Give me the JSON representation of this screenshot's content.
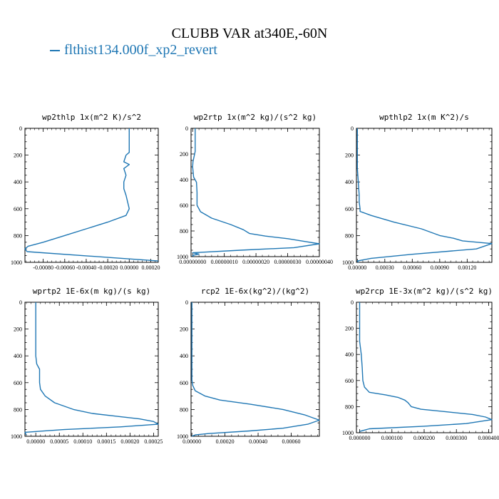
{
  "title": "CLUBB VAR at340E,-60N",
  "legend": {
    "series_name": "flthist134.000f_xp2_revert",
    "color": "#1f77b4"
  },
  "chart_data": [
    {
      "type": "line",
      "title": "wp2thlp   1x(m^2 K)/s^2",
      "ylim": [
        1000,
        0
      ],
      "y_ticks": [
        "0",
        "200",
        "400",
        "600",
        "800",
        "1000"
      ],
      "xlim": [
        -0.00097,
        0.00027
      ],
      "x_ticks": [
        "-0.00080",
        "-0.00060",
        "-0.00040",
        "-0.00020",
        "0.00000",
        "0.00020"
      ],
      "x_tick_values": [
        -0.0008,
        -0.0006,
        -0.0004,
        -0.0002,
        0.0,
        0.0002
      ],
      "series": [
        {
          "x": [
            0.0,
            0.0,
            -3e-05,
            -5e-05,
            0.0,
            -5e-05,
            -3e-05,
            -5e-05,
            -5e-05,
            -3e-05,
            0.0,
            -3e-05,
            -0.0002,
            -0.0004,
            -0.0006,
            -0.0008,
            -0.00094,
            -0.00097,
            -0.00095,
            0.00027
          ],
          "y": [
            0,
            180,
            200,
            250,
            270,
            300,
            350,
            400,
            450,
            500,
            600,
            650,
            700,
            750,
            800,
            850,
            880,
            900,
            920,
            990
          ]
        }
      ]
    },
    {
      "type": "line",
      "title": "wp2rtp   1x(m^2 kg)/(s^2 kg)",
      "ylim": [
        1000,
        0
      ],
      "y_ticks": [
        "0",
        "200",
        "400",
        "600",
        "800",
        "1000"
      ],
      "xlim": [
        -5e-09,
        4e-07
      ],
      "x_ticks": [
        "0.00000000",
        "0.00000010",
        "0.00000020",
        "0.00000030",
        "0.00000040"
      ],
      "x_tick_values": [
        0.0,
        1e-07,
        2e-07,
        3e-07,
        4e-07
      ],
      "series": [
        {
          "x": [
            8e-09,
            8e-09,
            1e-09,
            0.0,
            3e-09,
            1.2e-08,
            1.4e-08,
            1.4e-08,
            2.5e-08,
            6e-08,
            1.2e-07,
            1.6e-07,
            1.8e-07,
            2.3e-07,
            3e-07,
            3.5e-07,
            4e-07,
            3.2e-07,
            1.5e-07,
            0.0,
            2e-08,
            0.0,
            3e-09
          ],
          "y": [
            0,
            180,
            260,
            300,
            380,
            420,
            500,
            600,
            650,
            700,
            750,
            790,
            820,
            840,
            860,
            880,
            900,
            930,
            950,
            970,
            980,
            990,
            1000
          ]
        }
      ]
    },
    {
      "type": "line",
      "title": "wpthlp2   1x(m K^2)/s",
      "ylim": [
        1000,
        0
      ],
      "y_ticks": [
        "0",
        "200",
        "400",
        "600",
        "800",
        "1000"
      ],
      "xlim": [
        -1e-05,
        0.00147
      ],
      "x_ticks": [
        "0.00000",
        "0.00030",
        "0.00060",
        "0.00090",
        "0.00120"
      ],
      "x_tick_values": [
        0.0,
        0.0003,
        0.0006,
        0.0009,
        0.0012
      ],
      "series": [
        {
          "x": [
            0.0,
            0.0,
            1e-05,
            2e-05,
            2e-05,
            3e-05,
            3e-05,
            0.00015,
            0.0004,
            0.0007,
            0.0009,
            0.00105,
            0.00115,
            0.00147,
            0.0013,
            0.0006,
            0.00015,
            0.0,
            1e-05
          ],
          "y": [
            0,
            300,
            400,
            500,
            550,
            600,
            620,
            650,
            700,
            750,
            800,
            820,
            840,
            860,
            900,
            940,
            970,
            990,
            1000
          ]
        }
      ]
    },
    {
      "type": "line",
      "title": "wprtp2   1E-6x(m kg)/(s kg)",
      "ylim": [
        1000,
        0
      ],
      "y_ticks": [
        "0",
        "200",
        "400",
        "600",
        "800",
        "1000"
      ],
      "xlim": [
        -2.3e-05,
        0.00026
      ],
      "x_ticks": [
        "0.00000",
        "0.00005",
        "0.00010",
        "0.00015",
        "0.00020",
        "0.00025"
      ],
      "x_tick_values": [
        0.0,
        5e-05,
        0.0001,
        0.00015,
        0.0002,
        0.00025
      ],
      "series": [
        {
          "x": [
            0.0,
            0.0,
            0.0,
            2e-06,
            8e-06,
            8e-06,
            8e-06,
            1e-05,
            2e-05,
            4e-05,
            8e-05,
            0.00012,
            0.00017,
            0.00022,
            0.00025,
            0.00026,
            0.00018,
            6e-05,
            -2.3e-05,
            -2e-05
          ],
          "y": [
            0,
            200,
            400,
            460,
            500,
            550,
            600,
            650,
            700,
            750,
            800,
            830,
            850,
            870,
            890,
            910,
            930,
            950,
            970,
            990
          ]
        }
      ]
    },
    {
      "type": "line",
      "title": "rcp2   1E-6x(kg^2)/(kg^2)",
      "ylim": [
        1000,
        0
      ],
      "y_ticks": [
        "0",
        "200",
        "400",
        "600",
        "800",
        "1000"
      ],
      "xlim": [
        -5e-06,
        0.00077
      ],
      "x_ticks": [
        "0.00000",
        "0.00020",
        "0.00040",
        "0.00060"
      ],
      "x_tick_values": [
        0.0,
        0.0002,
        0.0004,
        0.0006
      ],
      "series": [
        {
          "x": [
            0.0,
            0.0,
            0.0,
            5e-06,
            2e-05,
            8e-05,
            0.00017,
            0.00035,
            0.00055,
            0.00068,
            0.00077,
            0.0007,
            0.00055,
            0.00035,
            0.0001,
            2e-05,
            0.0
          ],
          "y": [
            0,
            400,
            580,
            620,
            660,
            700,
            730,
            760,
            800,
            840,
            880,
            910,
            940,
            960,
            980,
            990,
            1000
          ]
        }
      ]
    },
    {
      "type": "line",
      "title": "wp2rcp   1E-3x(m^2 kg)/(s^2 kg)",
      "ylim": [
        1000,
        0
      ],
      "y_ticks": [
        "0",
        "200",
        "400",
        "600",
        "800",
        "1000"
      ],
      "xlim": [
        -1e-05,
        0.00041
      ],
      "x_ticks": [
        "0.000000",
        "0.000100",
        "0.000200",
        "0.000300",
        "0.000400"
      ],
      "x_tick_values": [
        0.0,
        0.0001,
        0.0002,
        0.0003,
        0.0004
      ],
      "series": [
        {
          "x": [
            0.0,
            0.0,
            5e-06,
            8e-06,
            1e-05,
            1.5e-05,
            3e-05,
            8e-05,
            0.00012,
            0.00014,
            0.00015,
            0.00016,
            0.00019,
            0.00027,
            0.00035,
            0.00039,
            0.00041,
            0.00033,
            0.0002,
            3e-05,
            0.0
          ],
          "y": [
            0,
            300,
            400,
            500,
            600,
            650,
            690,
            710,
            730,
            750,
            770,
            800,
            820,
            840,
            860,
            880,
            900,
            930,
            950,
            970,
            990
          ]
        }
      ]
    }
  ]
}
